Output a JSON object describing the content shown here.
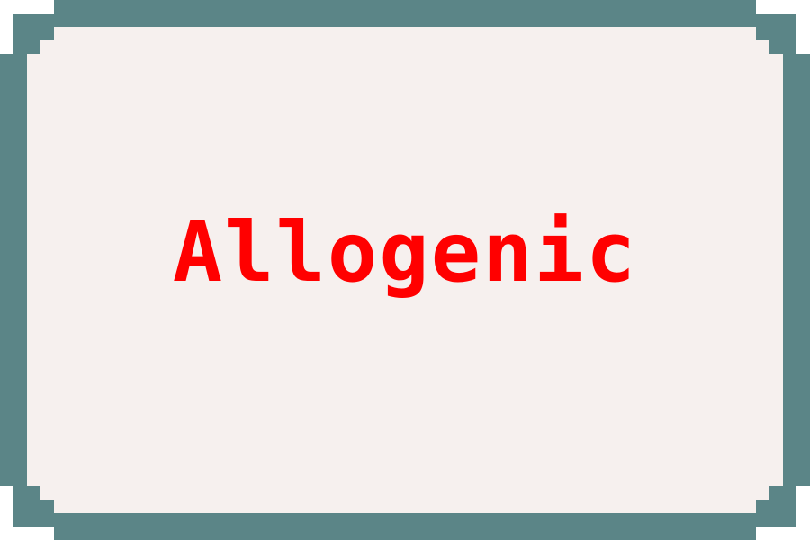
{
  "card": {
    "word": "Allogenic"
  },
  "colors": {
    "frame": "#5b8587",
    "panel": "#f6f0ee",
    "text": "#ff0000"
  }
}
